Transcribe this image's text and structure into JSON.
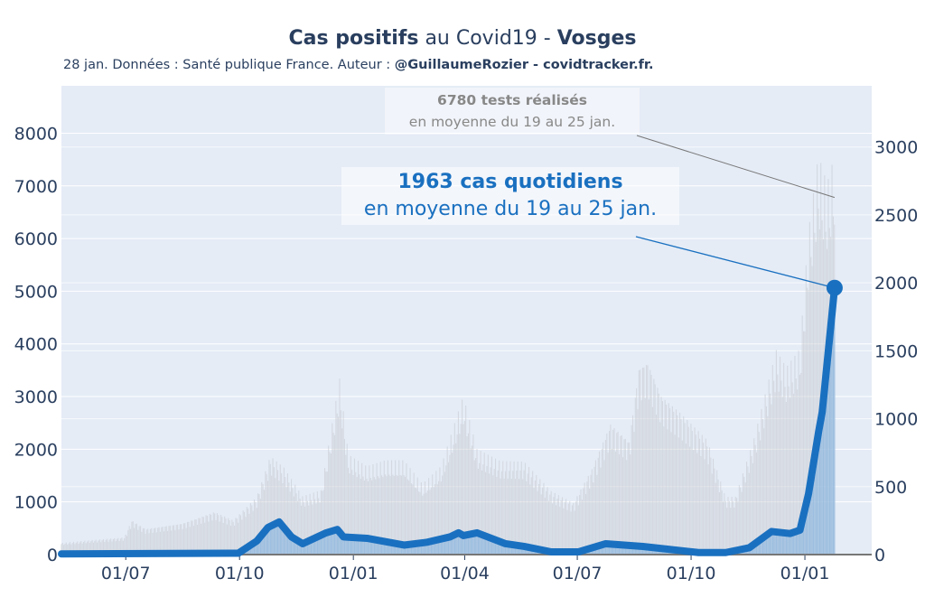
{
  "title": {
    "bold1": "Cas positifs",
    "mid": " au Covid19 - ",
    "bold2": "Vosges"
  },
  "subtitle": {
    "text": "28 jan. Données : Santé publique France. Auteur : ",
    "bold": "@GuillaumeRozier - covidtracker.fr."
  },
  "annotations": {
    "tests": {
      "bold": "6780 tests réalisés",
      "text": "en moyenne du 19 au 25 jan."
    },
    "cases": {
      "bold": "1963 cas quotidiens",
      "text": "en moyenne du 19 au 25 jan."
    }
  },
  "colors": {
    "plot_bg": "#e5ecf6",
    "cases": "#1a70c0",
    "tests": "#c8ccd2",
    "cases_fill": "#8fb8de"
  },
  "chart_data": {
    "type": "line",
    "x_unit": "days since start of series",
    "x_range": [
      0,
      655
    ],
    "x_ticks": [
      {
        "day": 52,
        "label": "01/07"
      },
      {
        "day": 144,
        "label": "01/10"
      },
      {
        "day": 236,
        "label": "01/01"
      },
      {
        "day": 326,
        "label": "01/04"
      },
      {
        "day": 417,
        "label": "01/07"
      },
      {
        "day": 509,
        "label": "01/10"
      },
      {
        "day": 601,
        "label": "01/01"
      }
    ],
    "y_left": {
      "range": [
        0,
        8900
      ],
      "ticks": [
        0,
        1000,
        2000,
        3000,
        4000,
        5000,
        6000,
        7000,
        8000
      ]
    },
    "y_right": {
      "range": [
        0,
        3450
      ],
      "ticks": [
        0,
        500,
        1000,
        1500,
        2000,
        2500,
        3000
      ]
    },
    "series": [
      {
        "name": "tests",
        "axis": "left",
        "type": "bar",
        "x": [
          0,
          24,
          51,
          57,
          68,
          98,
          124,
          139,
          158,
          169,
          180,
          195,
          210,
          225,
          232,
          247,
          262,
          277,
          292,
          307,
          325,
          336,
          355,
          374,
          396,
          414,
          429,
          444,
          459,
          467,
          474,
          485,
          500,
          522,
          537,
          545,
          560,
          578,
          586,
          597,
          604,
          612,
          619,
          625
        ],
        "y": [
          200,
          250,
          300,
          600,
          450,
          550,
          750,
          600,
          1000,
          1700,
          1500,
          1000,
          1100,
          3000,
          1700,
          1500,
          1600,
          1600,
          1200,
          1500,
          2700,
          1800,
          1600,
          1600,
          1100,
          900,
          1500,
          2300,
          2000,
          3300,
          3400,
          2800,
          2500,
          2000,
          1000,
          1000,
          2000,
          3500,
          3200,
          3500,
          5500,
          6800,
          6300,
          6780
        ]
      },
      {
        "name": "cas quotidiens",
        "axis": "right",
        "type": "line",
        "x": [
          0,
          143,
          158,
          167,
          176,
          186,
          195,
          214,
          223,
          228,
          247,
          277,
          295,
          314,
          321,
          325,
          336,
          359,
          374,
          396,
          418,
          440,
          470,
          515,
          537,
          556,
          574,
          589,
          597,
          604,
          612,
          615,
          625
        ],
        "y": [
          5,
          10,
          100,
          200,
          240,
          130,
          80,
          160,
          185,
          130,
          120,
          70,
          90,
          130,
          160,
          140,
          160,
          80,
          60,
          20,
          20,
          80,
          60,
          15,
          15,
          50,
          170,
          155,
          180,
          450,
          900,
          1050,
          1963
        ]
      }
    ]
  }
}
